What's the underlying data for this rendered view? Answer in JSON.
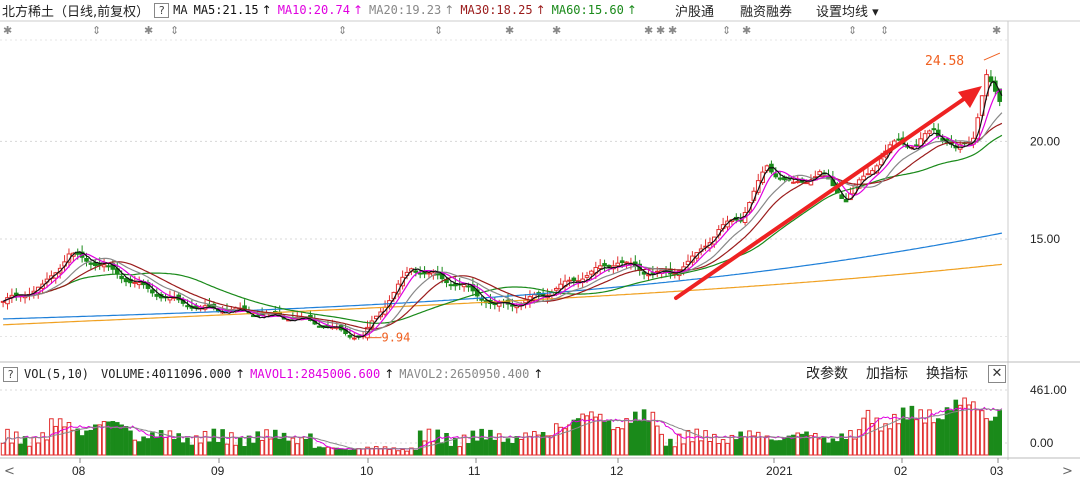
{
  "header": {
    "title": "北方稀土（日线,前复权）",
    "qbox": "?",
    "ma_label": "MA",
    "ma_items": [
      {
        "text": "MA5:21.15",
        "color": "#111111"
      },
      {
        "text": "MA10:20.74",
        "color": "#e000e0"
      },
      {
        "text": "MA20:19.23",
        "color": "#888888"
      },
      {
        "text": "MA30:18.25",
        "color": "#9b1c1c"
      },
      {
        "text": "MA60:15.60",
        "color": "#1a8a1a"
      }
    ],
    "arrow": "↑",
    "links": [
      "沪股通",
      "融资融券",
      "设置均线 ▾"
    ]
  },
  "marker_glyphs": {
    "star": "✱",
    "tick": "⇕"
  },
  "volume_header": {
    "qbox": "?",
    "vol": "VOL(5,10)",
    "volume": "VOLUME:4011096.000",
    "mavol1": "MAVOL1:2845006.600",
    "mavol2": "MAVOL2:2650950.400",
    "arrow": "↑",
    "buttons": [
      "改参数",
      "加指标",
      "换指标"
    ],
    "close": "✕",
    "mavol1_color": "#e000e0",
    "mavol2_color": "#888888"
  },
  "date_axis": {
    "left_nav": "<",
    "right_nav": ">"
  },
  "colors": {
    "up": "#e23030",
    "down": "#1a8a1a",
    "ma5": "#111111",
    "ma10": "#e000e0",
    "ma20": "#888888",
    "ma30": "#9b1c1c",
    "ma60": "#1a8a1a",
    "ma120": "#1e7fd8",
    "ma250": "#f0a020",
    "trend_arrow": "#ee2222",
    "annotation": "#f06020"
  },
  "chart_data": [
    {
      "type": "candlestick",
      "title": "北方稀土（日线,前复权）",
      "y_axis_ticks": [
        15.0,
        20.0
      ],
      "y_axis_tick_labels": [
        "15.00",
        "20.00"
      ],
      "ylim": [
        9.0,
        25.2
      ],
      "x_axis_labels": [
        "08",
        "09",
        "10",
        "11",
        "12",
        "2021",
        "02",
        "03"
      ],
      "annotations": [
        {
          "text": "24.58",
          "value": 24.58,
          "kind": "high"
        },
        {
          "text": "9.94",
          "value": 9.94,
          "kind": "low"
        }
      ],
      "moving_averages": [
        {
          "name": "MA5",
          "last": 21.15
        },
        {
          "name": "MA10",
          "last": 20.74
        },
        {
          "name": "MA20",
          "last": 19.23
        },
        {
          "name": "MA30",
          "last": 18.25
        },
        {
          "name": "MA60",
          "last": 15.6
        }
      ]
    },
    {
      "type": "bar",
      "title": "VOL(5,10)",
      "y_axis_ticks": [
        0.0,
        461.0
      ],
      "y_axis_tick_labels": [
        "0.00",
        "461.00"
      ],
      "last_volume": 4011096.0,
      "mavol1": 2845006.6,
      "mavol2": 2650950.4
    }
  ]
}
